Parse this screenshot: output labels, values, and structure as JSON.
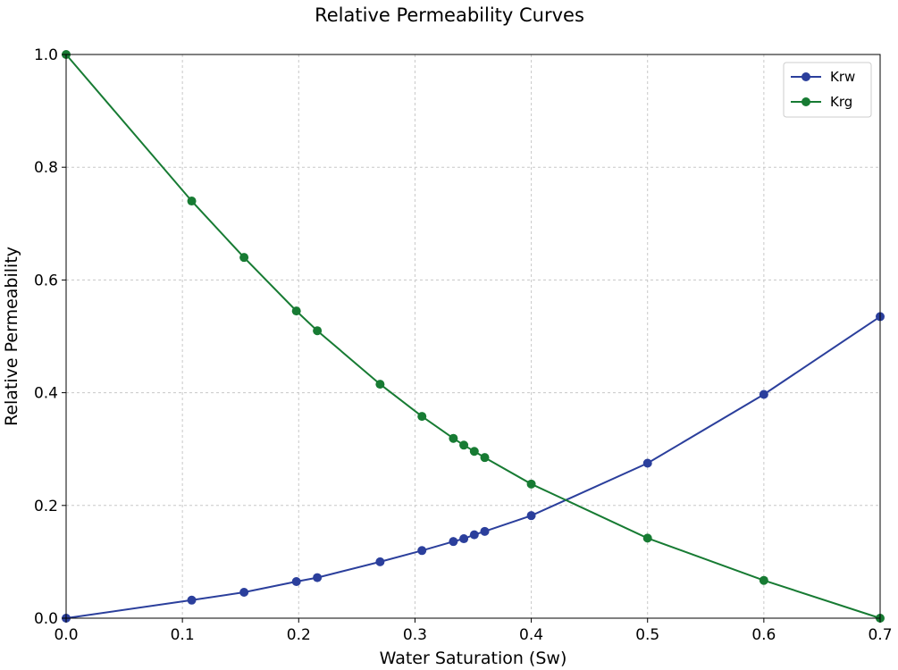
{
  "chart_data": {
    "type": "line",
    "title": "Relative Permeability Curves",
    "xlabel": "Water Saturation (Sw)",
    "ylabel": "Relative Permeability",
    "xlim": [
      0.0,
      0.7
    ],
    "ylim": [
      0.0,
      1.0
    ],
    "xticks": [
      0.0,
      0.1,
      0.2,
      0.3,
      0.4,
      0.5,
      0.6,
      0.7
    ],
    "xtick_labels": [
      "0.0",
      "0.1",
      "0.2",
      "0.3",
      "0.4",
      "0.5",
      "0.6",
      "0.7"
    ],
    "yticks": [
      0.0,
      0.2,
      0.4,
      0.6,
      0.8,
      1.0
    ],
    "ytick_labels": [
      "0.0",
      "0.2",
      "0.4",
      "0.6",
      "0.8",
      "1.0"
    ],
    "grid": true,
    "legend_position": "top-right",
    "series": [
      {
        "name": "Krw",
        "color": "#2b3f9c",
        "marker": "circle",
        "x": [
          0.0,
          0.108,
          0.153,
          0.198,
          0.216,
          0.27,
          0.306,
          0.333,
          0.342,
          0.351,
          0.36,
          0.4,
          0.5,
          0.6,
          0.7
        ],
        "y": [
          0.0,
          0.032,
          0.046,
          0.065,
          0.072,
          0.1,
          0.12,
          0.136,
          0.141,
          0.148,
          0.154,
          0.182,
          0.275,
          0.397,
          0.535
        ]
      },
      {
        "name": "Krg",
        "color": "#177b33",
        "marker": "circle",
        "x": [
          0.0,
          0.108,
          0.153,
          0.198,
          0.216,
          0.27,
          0.306,
          0.333,
          0.342,
          0.351,
          0.36,
          0.4,
          0.5,
          0.6,
          0.7
        ],
        "y": [
          1.0,
          0.74,
          0.64,
          0.545,
          0.51,
          0.415,
          0.358,
          0.319,
          0.307,
          0.296,
          0.285,
          0.238,
          0.142,
          0.067,
          0.0
        ]
      }
    ]
  }
}
